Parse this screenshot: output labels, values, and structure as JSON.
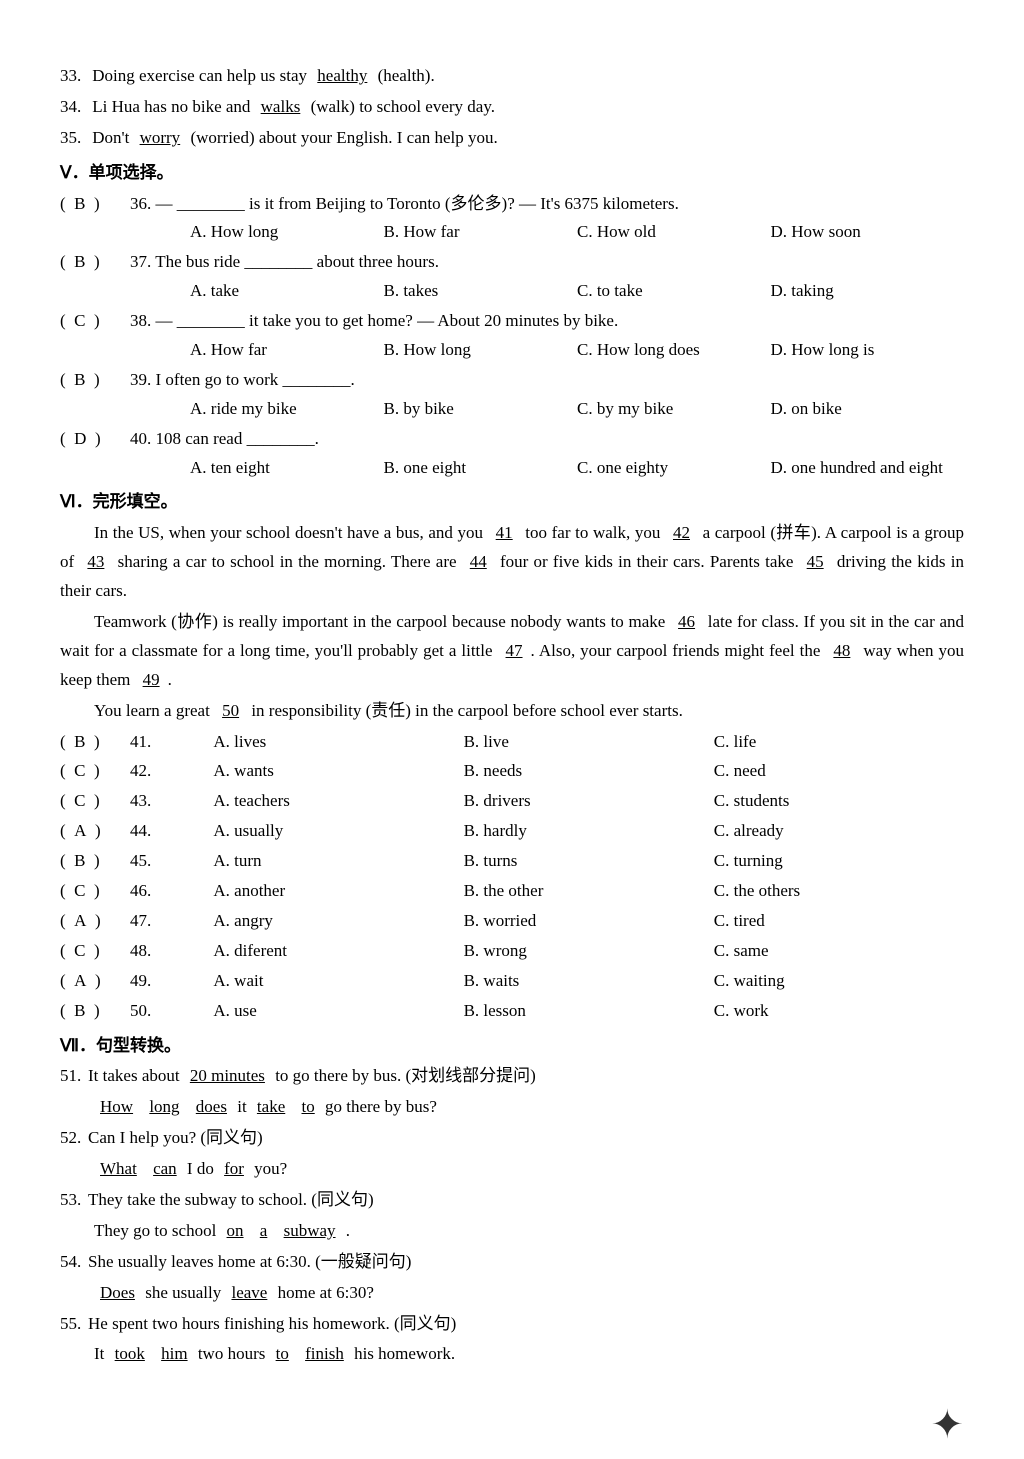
{
  "fill": [
    {
      "num": "33.",
      "pre": "Doing exercise can help us stay ",
      "ans": "healthy",
      "post": " (health)."
    },
    {
      "num": "34.",
      "pre": "Li Hua has no bike and ",
      "ans": "walks",
      "post": " (walk) to school every day."
    },
    {
      "num": "35.",
      "pre": "Don't ",
      "ans": "worry",
      "post": " (worried) about your English. I can help you."
    }
  ],
  "sec5": "Ⅴ．单项选择。",
  "mcq": [
    {
      "ans": "B",
      "num": "36.",
      "q": "— ________ is it from Beijing to Toronto (多伦多)? — It's 6375 kilometers.",
      "a": "How long",
      "b": "How far",
      "c": "How old",
      "d": "How soon"
    },
    {
      "ans": "B",
      "num": "37.",
      "q": "The bus ride ________ about three hours.",
      "a": "take",
      "b": "takes",
      "c": "to take",
      "d": "taking"
    },
    {
      "ans": "C",
      "num": "38.",
      "q": "— ________ it take you to get home? — About 20 minutes by bike.",
      "a": "How far",
      "b": "How long",
      "c": "How long does",
      "d": "How long is"
    },
    {
      "ans": "B",
      "num": "39.",
      "q": "I often go to work ________.",
      "a": "ride my bike",
      "b": "by bike",
      "c": "by my bike",
      "d": "on bike"
    },
    {
      "ans": "D",
      "num": "40.",
      "q": "108 can read ________.",
      "a": "ten eight",
      "b": "one eight",
      "c": "one eighty",
      "d": "one hundred and eight"
    }
  ],
  "sec6": "Ⅵ．完形填空。",
  "passage": {
    "p1a": "In the US, when your school doesn't have a bus, and you ",
    "b41": "41",
    "p1b": " too far to walk, you ",
    "b42": "42",
    "p1c": " a carpool (拼车). A carpool is a group of ",
    "b43": "43",
    "p1d": " sharing a car to school in the morning. There are ",
    "b44": "44",
    "p1e": " four or five kids in their cars. Parents take ",
    "b45": "45",
    "p1f": " driving the kids in their cars.",
    "p2a": "Teamwork (协作) is really important in the carpool because nobody wants to make ",
    "b46": "46",
    "p2b": " late for class. If you sit in the car and wait for a classmate for a long time, you'll probably get a little ",
    "b47": "47",
    "p2c": ". Also, your carpool friends might feel the ",
    "b48": "48",
    "p2d": " way when you keep them ",
    "b49": "49",
    "p2e": ".",
    "p3a": "You learn a great ",
    "b50": "50",
    "p3b": " in responsibility (责任) in the carpool before school ever starts."
  },
  "cloze": [
    {
      "ans": "B",
      "num": "41.",
      "a": "lives",
      "b": "live",
      "c": "life"
    },
    {
      "ans": "C",
      "num": "42.",
      "a": "wants",
      "b": "needs",
      "c": "need"
    },
    {
      "ans": "C",
      "num": "43.",
      "a": "teachers",
      "b": "drivers",
      "c": "students"
    },
    {
      "ans": "A",
      "num": "44.",
      "a": "usually",
      "b": "hardly",
      "c": "already"
    },
    {
      "ans": "B",
      "num": "45.",
      "a": "turn",
      "b": "turns",
      "c": "turning"
    },
    {
      "ans": "C",
      "num": "46.",
      "a": "another",
      "b": "the other",
      "c": "the others"
    },
    {
      "ans": "A",
      "num": "47.",
      "a": "angry",
      "b": "worried",
      "c": "tired"
    },
    {
      "ans": "C",
      "num": "48.",
      "a": "diferent",
      "b": "wrong",
      "c": "same"
    },
    {
      "ans": "A",
      "num": "49.",
      "a": "wait",
      "b": "waits",
      "c": "waiting"
    },
    {
      "ans": "B",
      "num": "50.",
      "a": "use",
      "b": "lesson",
      "c": "work"
    }
  ],
  "sec7": "Ⅶ．句型转换。",
  "transform": [
    {
      "num": "51.",
      "q_pre": "It takes about ",
      "q_u": "20 minutes",
      "q_post": " to go there by bus. (对划线部分提问)",
      "ans_parts": [
        "How",
        "long",
        "does",
        " it ",
        "take",
        "to",
        " go there by bus?"
      ],
      "ans_u": [
        1,
        1,
        1,
        0,
        1,
        1,
        0
      ]
    },
    {
      "num": "52.",
      "q_pre": "Can I help you? (同义句)",
      "q_u": "",
      "q_post": "",
      "ans_parts": [
        "What",
        "can",
        " I do ",
        "for",
        " you?"
      ],
      "ans_u": [
        1,
        1,
        0,
        1,
        0
      ]
    },
    {
      "num": "53.",
      "q_pre": "They take the subway to school. (同义句)",
      "q_u": "",
      "q_post": "",
      "ans_parts": [
        "They go to school ",
        "on",
        "a",
        "subway",
        "."
      ],
      "ans_u": [
        0,
        1,
        1,
        1,
        0
      ]
    },
    {
      "num": "54.",
      "q_pre": "She usually leaves home at 6:30. (一般疑问句)",
      "q_u": "",
      "q_post": "",
      "ans_parts": [
        "Does",
        " she usually ",
        "leave",
        " home at 6:30?"
      ],
      "ans_u": [
        1,
        0,
        1,
        0
      ]
    },
    {
      "num": "55.",
      "q_pre": "He spent two hours finishing his homework. (同义句)",
      "q_u": "",
      "q_post": "",
      "ans_parts": [
        "It ",
        "took",
        "him",
        " two hours ",
        "to",
        "finish",
        " his homework."
      ],
      "ans_u": [
        0,
        1,
        1,
        0,
        1,
        1,
        0
      ]
    }
  ]
}
